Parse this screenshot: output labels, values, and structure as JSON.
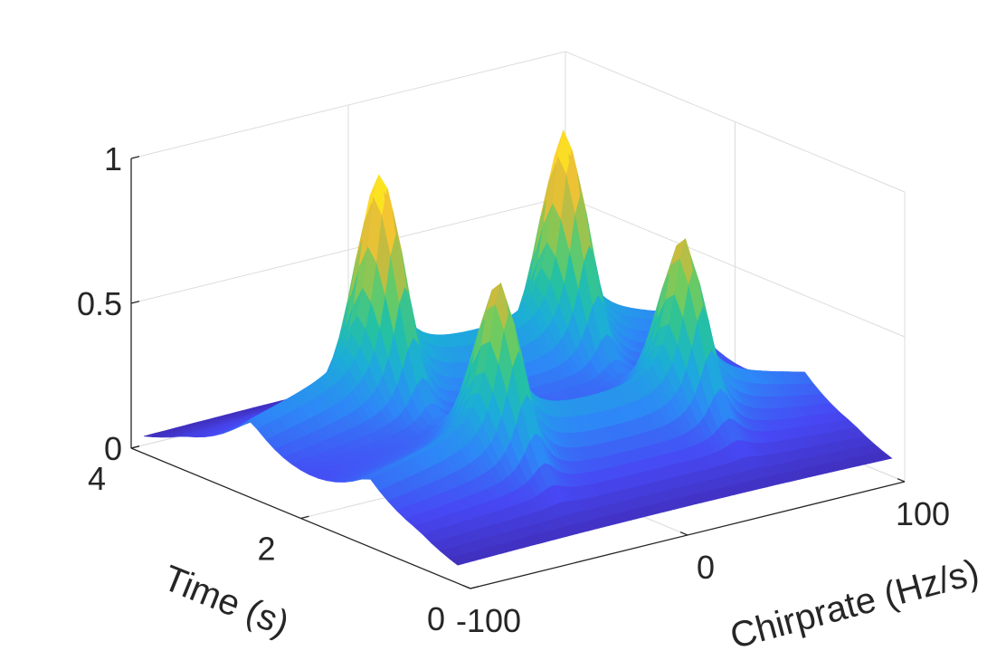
{
  "chart_data": {
    "type": "surface3d",
    "title": "",
    "xlabel": "Chirprate (Hz/s)",
    "ylabel": "Time (s)",
    "zlabel": "",
    "xlim": [
      -100,
      100
    ],
    "ylim": [
      0,
      4
    ],
    "zlim": [
      0,
      1
    ],
    "x_ticks": [
      -100,
      0,
      100
    ],
    "y_ticks": [
      0,
      2,
      4
    ],
    "z_ticks": [
      0,
      0.5,
      1
    ],
    "x_tick_labels": [
      "-100",
      "0",
      "100"
    ],
    "y_tick_labels": [
      "0",
      "2",
      "4"
    ],
    "z_tick_labels": [
      "0",
      "0.5",
      "1"
    ],
    "grid": true,
    "colormap": "parula",
    "colors": [
      "#3e26a8",
      "#4748f4",
      "#2e87f7",
      "#1cadd9",
      "#26c2a0",
      "#6fcb5f",
      "#d0ba3c",
      "#fdc831",
      "#f9fb15"
    ],
    "ridges": [
      {
        "time": 2.6,
        "base_height": 0.5,
        "spread": 1.0
      },
      {
        "time": 1.2,
        "base_height": 0.42,
        "spread": 1.0
      }
    ],
    "peaks": [
      {
        "chirprate": -40,
        "time": 2.6,
        "value": 1.0
      },
      {
        "chirprate": 45,
        "time": 2.6,
        "value": 0.98
      },
      {
        "chirprate": -40,
        "time": 1.2,
        "value": 0.82
      },
      {
        "chirprate": 45,
        "time": 1.2,
        "value": 0.82
      }
    ]
  }
}
